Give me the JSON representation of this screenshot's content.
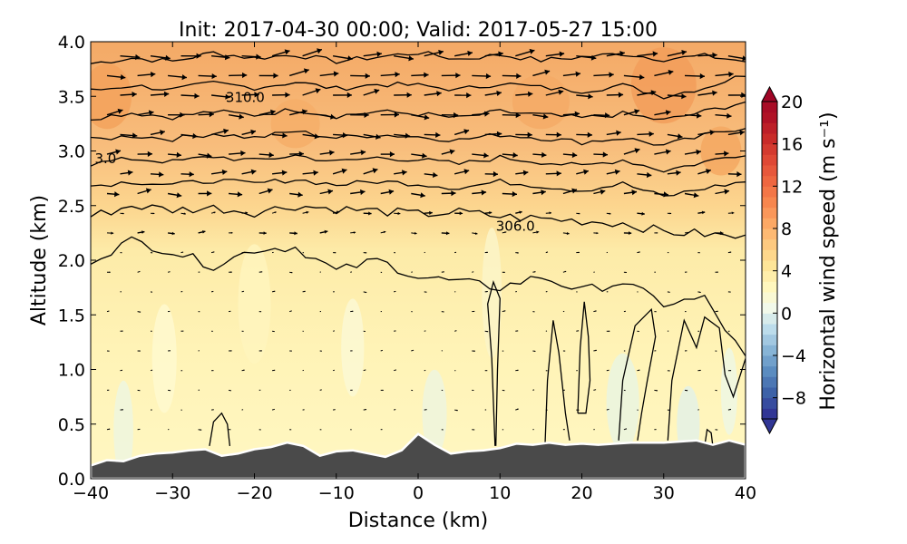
{
  "chart_data": {
    "type": "contour-cross-section",
    "title": "Init: 2017-04-30 00:00; Valid: 2017-05-27 15:00",
    "xlabel": "Distance (km)",
    "ylabel": "Altitude (km)",
    "xlim": [
      -40,
      40
    ],
    "ylim": [
      0.0,
      4.0
    ],
    "xticks": [
      -40,
      -30,
      -20,
      -10,
      0,
      10,
      20,
      30,
      40
    ],
    "xtick_labels": [
      "−40",
      "−30",
      "−20",
      "−10",
      "0",
      "10",
      "20",
      "30",
      "40"
    ],
    "yticks": [
      0.0,
      0.5,
      1.0,
      1.5,
      2.0,
      2.5,
      3.0,
      3.5,
      4.0
    ],
    "ytick_labels": [
      "0.0",
      "0.5",
      "1.0",
      "1.5",
      "2.0",
      "2.5",
      "3.0",
      "3.5",
      "4.0"
    ],
    "colorbar": {
      "label": "Horizontal wind speed (m s⁻¹)",
      "range": [
        -10,
        20
      ],
      "ticks": [
        20,
        16,
        12,
        8,
        4,
        0,
        -4,
        -8
      ],
      "tick_labels": [
        "20",
        "16",
        "12",
        "8",
        "4",
        "0",
        "−4",
        "−8"
      ],
      "extend": "both"
    },
    "contour_labels": [
      {
        "text": "310.0",
        "x": -23.5,
        "y": 3.49
      },
      {
        "text": "306.0",
        "x": 9.5,
        "y": 2.31
      },
      {
        "text": "3.0",
        "x": -39.5,
        "y": 2.93
      }
    ],
    "terrain": {
      "x": [
        -40,
        -38,
        -36,
        -34,
        -32,
        -30,
        -28,
        -26,
        -24,
        -22,
        -20,
        -18,
        -16,
        -14,
        -12,
        -10,
        -8,
        -6,
        -4,
        -2,
        0,
        2,
        4,
        6,
        8,
        10,
        12,
        14,
        16,
        18,
        20,
        22,
        24,
        26,
        28,
        30,
        32,
        34,
        36,
        38,
        40
      ],
      "altitude_km": [
        0.12,
        0.17,
        0.16,
        0.21,
        0.23,
        0.24,
        0.26,
        0.27,
        0.21,
        0.23,
        0.27,
        0.29,
        0.33,
        0.3,
        0.21,
        0.25,
        0.26,
        0.23,
        0.2,
        0.26,
        0.41,
        0.31,
        0.23,
        0.25,
        0.26,
        0.28,
        0.32,
        0.31,
        0.33,
        0.31,
        0.32,
        0.31,
        0.32,
        0.33,
        0.33,
        0.33,
        0.34,
        0.35,
        0.31,
        0.35,
        0.31
      ]
    },
    "isentropes_km": [
      [
        3.8,
        3.85,
        3.82,
        3.9,
        3.85,
        3.88,
        3.82,
        3.86,
        3.9,
        3.84,
        3.88,
        3.83,
        3.86,
        3.89,
        3.84,
        3.87,
        3.82
      ],
      [
        3.55,
        3.6,
        3.56,
        3.62,
        3.58,
        3.63,
        3.57,
        3.61,
        3.6,
        3.56,
        3.62,
        3.58,
        3.55,
        3.6,
        3.5,
        3.58,
        3.7
      ],
      [
        3.3,
        3.35,
        3.31,
        3.36,
        3.33,
        3.38,
        3.32,
        3.36,
        3.34,
        3.3,
        3.36,
        3.33,
        3.3,
        3.34,
        3.28,
        3.36,
        3.45
      ],
      [
        3.1,
        3.14,
        3.11,
        3.16,
        3.12,
        3.18,
        3.12,
        3.15,
        3.13,
        3.1,
        3.15,
        3.12,
        3.08,
        3.12,
        3.05,
        3.14,
        3.22
      ],
      [
        2.88,
        2.93,
        2.9,
        2.95,
        2.91,
        2.96,
        2.9,
        2.94,
        2.92,
        2.88,
        2.94,
        2.9,
        2.86,
        2.92,
        2.82,
        2.9,
        2.98
      ],
      [
        2.68,
        2.72,
        2.69,
        2.73,
        2.7,
        2.74,
        2.69,
        2.72,
        2.7,
        2.66,
        2.72,
        2.68,
        2.64,
        2.7,
        2.58,
        2.66,
        2.72
      ],
      [
        2.4,
        2.5,
        2.46,
        2.48,
        2.44,
        2.5,
        2.47,
        2.45,
        2.42,
        2.44,
        2.4,
        2.38,
        2.36,
        2.34,
        2.26,
        2.24,
        2.2
      ],
      [
        2.0,
        2.18,
        2.08,
        1.95,
        2.1,
        2.12,
        1.9,
        2.0,
        1.85,
        1.8,
        1.75,
        1.85,
        1.72,
        1.8,
        1.6,
        1.65,
        1.1
      ]
    ],
    "wind_arrow_max_m_s": 12
  }
}
